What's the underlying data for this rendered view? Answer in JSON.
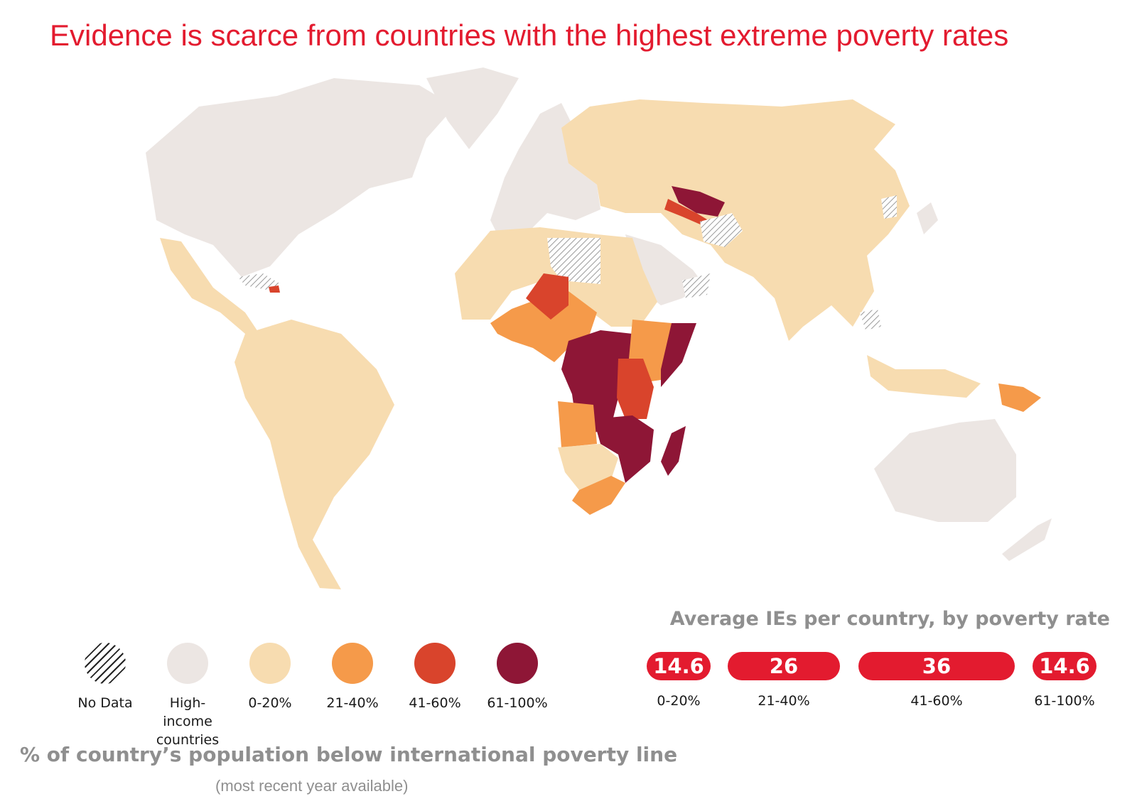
{
  "title": "Evidence is scarce from countries with the highest extreme poverty rates",
  "colors": {
    "accent": "#e31b2f",
    "no_data": "#ffffff",
    "high_income": "#ece6e3",
    "p0_20": "#f7dcb0",
    "p21_40": "#f59a4a",
    "p41_60": "#d9442c",
    "p61_100": "#8e1636"
  },
  "legend": {
    "items": [
      {
        "label": "No Data",
        "category": "no_data"
      },
      {
        "label": "High-income countries",
        "category": "high_income"
      },
      {
        "label": "0-20%",
        "category": "p0_20"
      },
      {
        "label": "21-40%",
        "category": "p21_40"
      },
      {
        "label": "41-60%",
        "category": "p41_60"
      },
      {
        "label": "61-100%",
        "category": "p61_100"
      }
    ],
    "caption": "% of country’s population below international poverty line",
    "subcaption": "(most recent year available)"
  },
  "chart_data": {
    "type": "bar",
    "title": "Average IEs per country, by poverty rate",
    "categories": [
      "0-20%",
      "21-40%",
      "41-60%",
      "61-100%"
    ],
    "values": [
      14.6,
      26,
      36,
      14.6
    ],
    "value_labels": [
      "14.6",
      "26",
      "36",
      "14.6"
    ]
  }
}
